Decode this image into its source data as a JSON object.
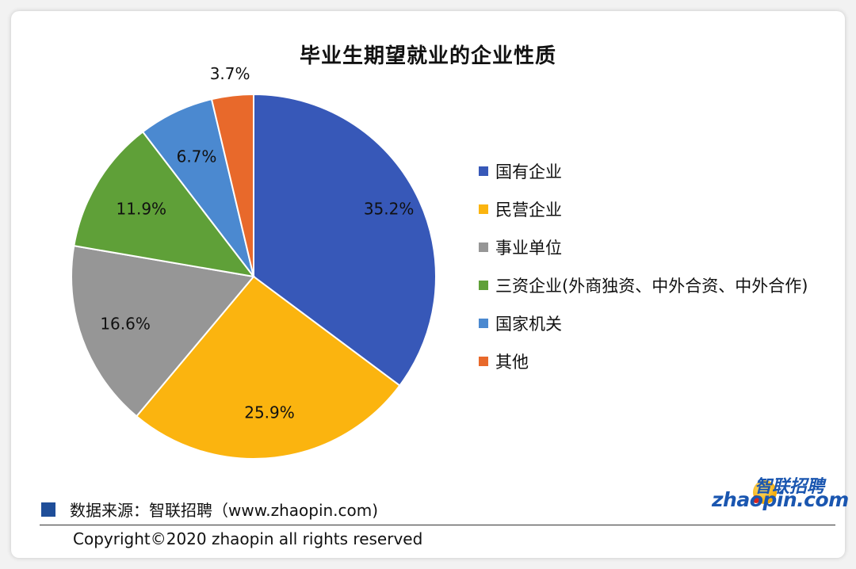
{
  "title": "毕业生期望就业的企业性质",
  "source_text": "数据来源：智联招聘（www.zhaopin.com)",
  "copyright": "Copyright©2020 zhaopin all rights reserved",
  "logo": {
    "cn": "智联招聘",
    "en": "zhaopin.com"
  },
  "colors": {
    "source_square": "#1f4e99",
    "logo_blue": "#1a56b0"
  },
  "chart_data": {
    "type": "pie",
    "title": "毕业生期望就业的企业性质",
    "start_angle_deg": 0,
    "direction": "clockwise",
    "legend_position": "right",
    "categories": [
      "国有企业",
      "民营企业",
      "事业单位",
      "三资企业(外商独资、中外合资、中外合作)",
      "国家机关",
      "其他"
    ],
    "values": [
      35.2,
      25.9,
      16.6,
      11.9,
      6.7,
      3.7
    ],
    "labels": [
      "35.2%",
      "25.9%",
      "16.6%",
      "11.9%",
      "6.7%",
      "3.7%"
    ],
    "colors": [
      "#3758b8",
      "#fbb40f",
      "#969696",
      "#5fa038",
      "#4b89d0",
      "#e8692b"
    ]
  }
}
